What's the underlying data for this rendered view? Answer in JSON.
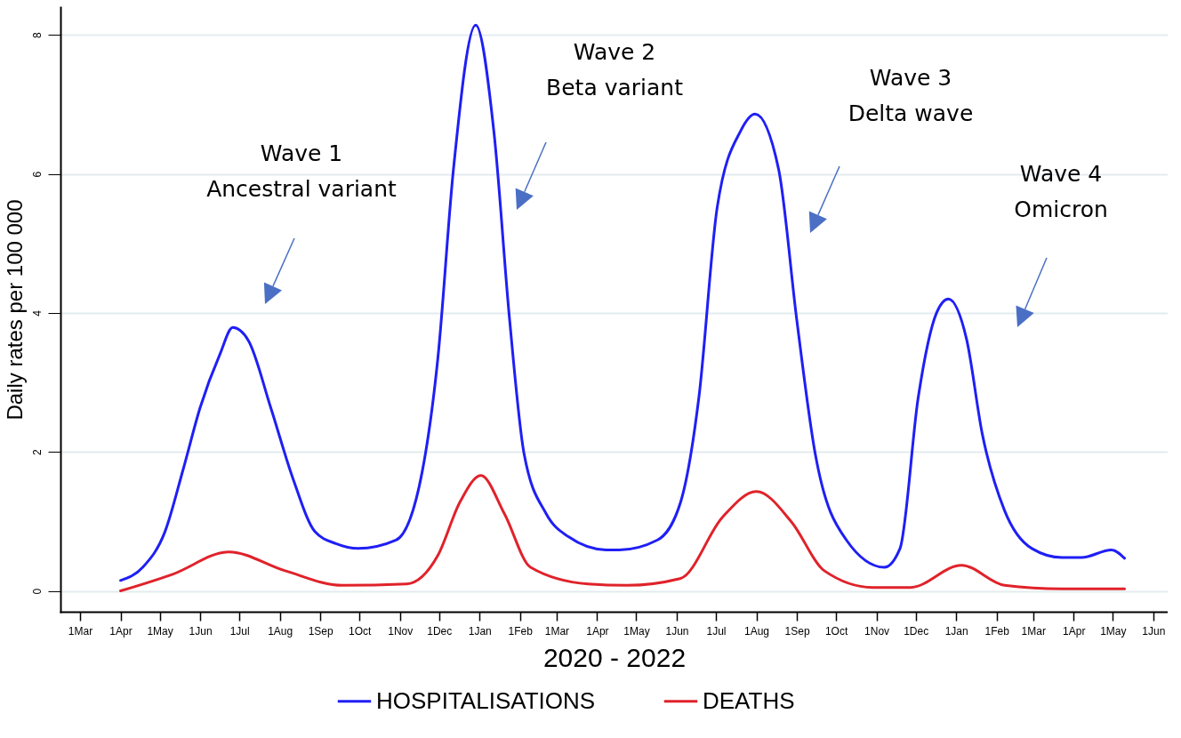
{
  "chart_data": {
    "type": "line",
    "xlabel": "2020 - 2022",
    "ylabel": "Daily rates per 100 000",
    "xlim": [
      "2020-02-15",
      "2022-06-12"
    ],
    "ylim": [
      -0.3,
      8.4
    ],
    "xticks": [
      {
        "value": "2020-03-01",
        "label": "1Mar"
      },
      {
        "value": "2020-04-01",
        "label": "1Apr"
      },
      {
        "value": "2020-05-01",
        "label": "1May"
      },
      {
        "value": "2020-06-01",
        "label": "1Jun"
      },
      {
        "value": "2020-07-01",
        "label": "1Jul"
      },
      {
        "value": "2020-08-01",
        "label": "1Aug"
      },
      {
        "value": "2020-09-01",
        "label": "1Sep"
      },
      {
        "value": "2020-10-01",
        "label": "1Oct"
      },
      {
        "value": "2020-11-01",
        "label": "1Nov"
      },
      {
        "value": "2020-12-01",
        "label": "1Dec"
      },
      {
        "value": "2021-01-01",
        "label": "1Jan"
      },
      {
        "value": "2021-02-01",
        "label": "1Feb"
      },
      {
        "value": "2021-03-01",
        "label": "1Mar"
      },
      {
        "value": "2021-04-01",
        "label": "1Apr"
      },
      {
        "value": "2021-05-01",
        "label": "1May"
      },
      {
        "value": "2021-06-01",
        "label": "1Jun"
      },
      {
        "value": "2021-07-01",
        "label": "1Jul"
      },
      {
        "value": "2021-08-01",
        "label": "1Aug"
      },
      {
        "value": "2021-09-01",
        "label": "1Sep"
      },
      {
        "value": "2021-10-01",
        "label": "1Oct"
      },
      {
        "value": "2021-11-01",
        "label": "1Nov"
      },
      {
        "value": "2021-12-01",
        "label": "1Dec"
      },
      {
        "value": "2022-01-01",
        "label": "1Jan"
      },
      {
        "value": "2022-02-01",
        "label": "1Feb"
      },
      {
        "value": "2022-03-01",
        "label": "1Mar"
      },
      {
        "value": "2022-04-01",
        "label": "1Apr"
      },
      {
        "value": "2022-05-01",
        "label": "1May"
      },
      {
        "value": "2022-06-01",
        "label": "1Jun"
      }
    ],
    "yticks": [
      0,
      2,
      4,
      6,
      8
    ],
    "grid": "y",
    "legend": "bottom",
    "marker": "none",
    "line_style": "solid",
    "series": [
      {
        "name": "HOSPITALISATIONS",
        "color": "#1f1ff5",
        "x": [
          "2020-04-01",
          "2020-04-18",
          "2020-05-05",
          "2020-05-19",
          "2020-06-01",
          "2020-06-16",
          "2020-06-26",
          "2020-07-08",
          "2020-07-25",
          "2020-08-11",
          "2020-08-28",
          "2020-09-13",
          "2020-09-30",
          "2020-10-29",
          "2020-11-18",
          "2020-11-30",
          "2020-12-12",
          "2020-12-29",
          "2021-01-12",
          "2021-01-24",
          "2021-02-04",
          "2021-02-21",
          "2021-03-10",
          "2021-04-08",
          "2021-04-18",
          "2021-05-17",
          "2021-06-04",
          "2021-06-18",
          "2021-07-02",
          "2021-07-20",
          "2021-07-31",
          "2021-08-18",
          "2021-09-01",
          "2021-09-15",
          "2021-10-09",
          "2021-11-07",
          "2021-11-19",
          "2021-12-03",
          "2021-12-17",
          "2021-12-26",
          "2022-01-09",
          "2022-01-21",
          "2022-02-07",
          "2022-02-28",
          "2022-03-23",
          "2022-04-07",
          "2022-04-30",
          "2022-05-10"
        ],
        "values": [
          0.15,
          0.34,
          0.85,
          1.75,
          2.64,
          3.4,
          3.79,
          3.6,
          2.64,
          1.62,
          0.85,
          0.68,
          0.61,
          0.73,
          1.71,
          3.34,
          6.07,
          8.14,
          6.6,
          3.9,
          1.98,
          1.11,
          0.78,
          0.59,
          0.59,
          0.73,
          1.28,
          2.79,
          5.52,
          6.62,
          6.86,
          6.07,
          3.89,
          1.98,
          0.73,
          0.34,
          0.61,
          2.79,
          4.0,
          4.2,
          3.62,
          2.26,
          1.16,
          0.61,
          0.48,
          0.48,
          0.59,
          0.47
        ]
      },
      {
        "name": "DEATHS",
        "color": "#e0222a",
        "x": [
          "2020-04-01",
          "2020-05-11",
          "2020-06-23",
          "2020-08-05",
          "2020-09-18",
          "2020-11-06",
          "2020-11-30",
          "2020-12-17",
          "2021-01-02",
          "2021-01-20",
          "2021-02-09",
          "2021-03-25",
          "2021-04-24",
          "2021-06-04",
          "2021-07-06",
          "2021-08-01",
          "2021-08-28",
          "2021-09-22",
          "2021-10-29",
          "2021-11-27",
          "2022-01-05",
          "2022-02-07",
          "2022-03-23",
          "2022-05-10"
        ],
        "values": [
          0,
          0.24,
          0.56,
          0.29,
          0.08,
          0.1,
          0.51,
          1.28,
          1.66,
          1.11,
          0.34,
          0.1,
          0.08,
          0.18,
          1.06,
          1.43,
          0.99,
          0.29,
          0.05,
          0.05,
          0.37,
          0.08,
          0.03,
          0.03
        ]
      }
    ],
    "annotations": [
      "Wave 1\nAncestral variant",
      "Wave 2\nBeta variant",
      "Wave 3\nDelta wave",
      "Wave 4\nOmicron"
    ]
  }
}
